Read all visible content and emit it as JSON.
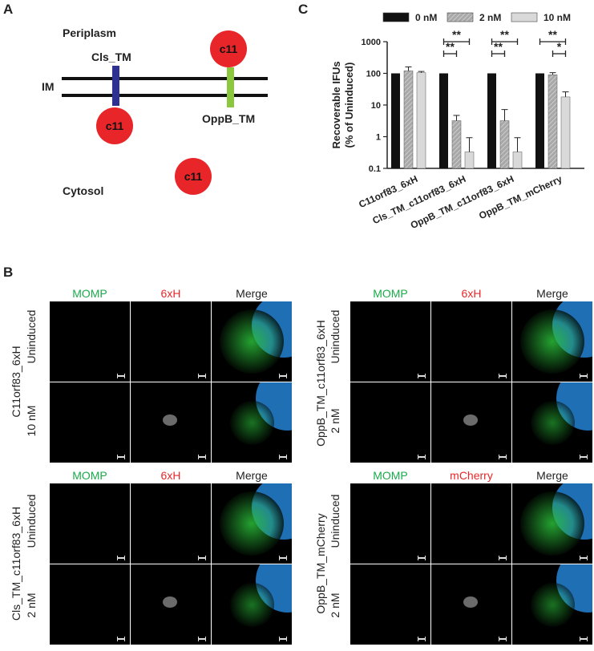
{
  "panel_labels": {
    "a": "A",
    "b": "B",
    "c": "C"
  },
  "diagram": {
    "periplasm": "Periplasm",
    "im": "IM",
    "cytosol": "Cytosol",
    "cls_tm": "Cls_TM",
    "oppb_tm": "OppB_TM",
    "c11": "c11",
    "colors": {
      "cls_tm": "#2e3192",
      "oppb_tm": "#8dc63f",
      "c11": "#e8262a"
    }
  },
  "chart_data": {
    "type": "bar",
    "ylabel": "Recoverable IFUs (% of Uninduced)",
    "yscale": "log",
    "ylim": [
      0.1,
      1000
    ],
    "yticks": [
      "0.1",
      "1",
      "10",
      "100",
      "1000"
    ],
    "categories": [
      "C11orf83_6xH",
      "Cls_TM_c11orf83_6xH",
      "OppB_TM_c11orf83_6xH",
      "OppB_TM_mCherry"
    ],
    "series": [
      {
        "name": "0 nM",
        "color": "#111111",
        "values": [
          100,
          100,
          100,
          100
        ],
        "errors": [
          0,
          0,
          0,
          0
        ]
      },
      {
        "name": "2 nM",
        "color": "#a0a0a0",
        "values": [
          120,
          3.2,
          3.2,
          90
        ],
        "errors": [
          40,
          1.5,
          4,
          15
        ]
      },
      {
        "name": "10 nM",
        "color": "#d9d9d9",
        "values": [
          105,
          0.33,
          0.33,
          18
        ],
        "errors": [
          10,
          0.6,
          0.6,
          8
        ]
      }
    ],
    "significance": [
      {
        "group": 1,
        "from": 0,
        "to": 2,
        "label": "**"
      },
      {
        "group": 1,
        "from": 0,
        "to": 1,
        "label": "**"
      },
      {
        "group": 2,
        "from": 0,
        "to": 2,
        "label": "**"
      },
      {
        "group": 2,
        "from": 0,
        "to": 1,
        "label": "**"
      },
      {
        "group": 3,
        "from": 0,
        "to": 2,
        "label": "**"
      },
      {
        "group": 3,
        "from": 1,
        "to": 2,
        "label": "*"
      }
    ]
  },
  "micrographs": {
    "headers": {
      "momp": "MOMP",
      "sixh": "6xH",
      "mcherry": "mCherry",
      "merge": "Merge"
    },
    "colors": {
      "green": "#1aaa4a",
      "red": "#e8262a"
    },
    "row_labels": {
      "c11": "C11orf83_6xH",
      "cls": "Cls_TM_c11orf83_6xH",
      "oppb": "OppB_TM_c11orf83_6xH",
      "oppbm": "OppB_TM_mCherry",
      "uninduced": "Uninduced",
      "ten": "10 nM",
      "two": "2 nM"
    }
  }
}
